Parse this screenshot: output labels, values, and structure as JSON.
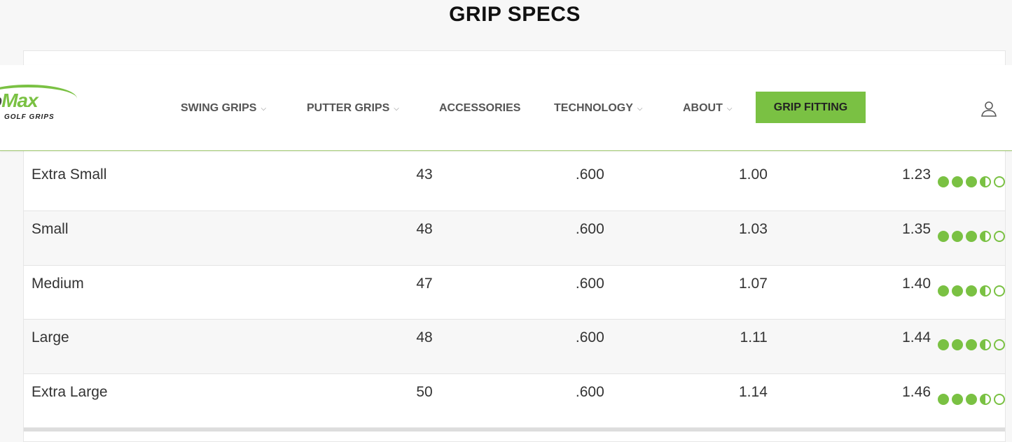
{
  "page": {
    "title": "GRIP SPECS"
  },
  "header": {
    "logo": {
      "word_dark": "bo",
      "word_green": "Max",
      "sub": "GOLF GRIPS"
    },
    "nav": [
      {
        "label": "SWING GRIPS",
        "dropdown": true
      },
      {
        "label": "PUTTER GRIPS",
        "dropdown": true
      },
      {
        "label": "ACCESSORIES",
        "dropdown": false
      },
      {
        "label": "TECHNOLOGY",
        "dropdown": true
      },
      {
        "label": "ABOUT",
        "dropdown": true
      }
    ],
    "cta": "GRIP FITTING",
    "accent": "#7ac143"
  },
  "table": {
    "rows": [
      {
        "size": "Extra Small",
        "c1": "43",
        "c2": ".600",
        "c3": "1.00",
        "c4": "1.23",
        "rating": 3.5
      },
      {
        "size": "Small",
        "c1": "48",
        "c2": ".600",
        "c3": "1.03",
        "c4": "1.35",
        "rating": 3.5
      },
      {
        "size": "Medium",
        "c1": "47",
        "c2": ".600",
        "c3": "1.07",
        "c4": "1.40",
        "rating": 3.5
      },
      {
        "size": "Large",
        "c1": "48",
        "c2": ".600",
        "c3": "1.11",
        "c4": "1.44",
        "rating": 3.5
      },
      {
        "size": "Extra Large",
        "c1": "50",
        "c2": ".600",
        "c3": "1.14",
        "c4": "1.46",
        "rating": 3.5
      }
    ]
  }
}
